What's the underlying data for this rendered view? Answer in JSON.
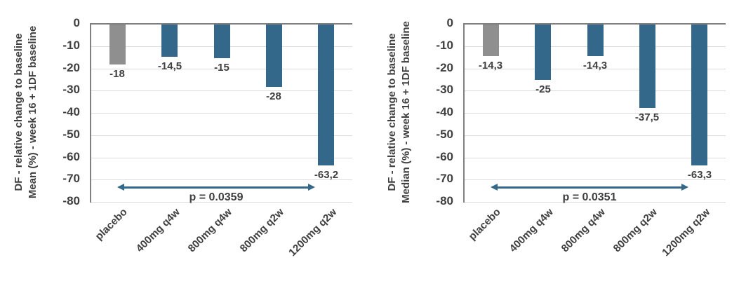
{
  "colors": {
    "placebo_bar": "#8f8f8f",
    "treatment_bar": "#33688a",
    "arrow": "#33688a",
    "text": "#3f3f3f",
    "gridline": "#dcdcdc",
    "axis_line": "#808080",
    "background": "#ffffff"
  },
  "chart_data": [
    {
      "type": "bar",
      "title": "",
      "ylabel_line1": "DF - relative change to baseline",
      "ylabel_line2": "Mean (%) - week 16 + 1DF baseline",
      "xlabel": "",
      "categories": [
        "placebo",
        "400mg q4w",
        "800mg q4w",
        "800mg q2w",
        "1200mg q2w"
      ],
      "values": [
        -18,
        -14.5,
        -15,
        -28,
        -63.2
      ],
      "value_labels": [
        "-18",
        "-14,5",
        "-15",
        "-28",
        "-63,2"
      ],
      "series_colors": [
        "placebo_bar",
        "treatment_bar",
        "treatment_bar",
        "treatment_bar",
        "treatment_bar"
      ],
      "ylim": [
        -80,
        0
      ],
      "yticks": [
        0,
        -10,
        -20,
        -30,
        -40,
        -50,
        -60,
        -70,
        -80
      ],
      "ytick_labels": [
        "0",
        "-10",
        "-20",
        "-30",
        "-40",
        "-50",
        "-60",
        "-70",
        "-80"
      ],
      "grid": true,
      "legend": false,
      "annotation": {
        "label": "p = 0.0359",
        "from_category": 0,
        "to_category": 4,
        "y": -73
      }
    },
    {
      "type": "bar",
      "title": "",
      "ylabel_line1": "DF - relative change to baseline",
      "ylabel_line2": "Median (%) - week 16 + 1DF baseline",
      "xlabel": "",
      "categories": [
        "placebo",
        "400mg q4w",
        "800mg q4w",
        "800mg q2w",
        "1200mg q2w"
      ],
      "values": [
        -14.3,
        -25,
        -14.3,
        -37.5,
        -63.3
      ],
      "value_labels": [
        "-14,3",
        "-25",
        "-14,3",
        "-37,5",
        "-63,3"
      ],
      "series_colors": [
        "placebo_bar",
        "treatment_bar",
        "treatment_bar",
        "treatment_bar",
        "treatment_bar"
      ],
      "ylim": [
        -80,
        0
      ],
      "yticks": [
        0,
        -10,
        -20,
        -30,
        -40,
        -50,
        -60,
        -70,
        -80
      ],
      "ytick_labels": [
        "0",
        "-10",
        "-20",
        "-30",
        "-40",
        "-50",
        "-60",
        "-70",
        "-80"
      ],
      "grid": true,
      "legend": false,
      "annotation": {
        "label": "p = 0.0351",
        "from_category": 0,
        "to_category": 4,
        "y": -73
      }
    }
  ]
}
